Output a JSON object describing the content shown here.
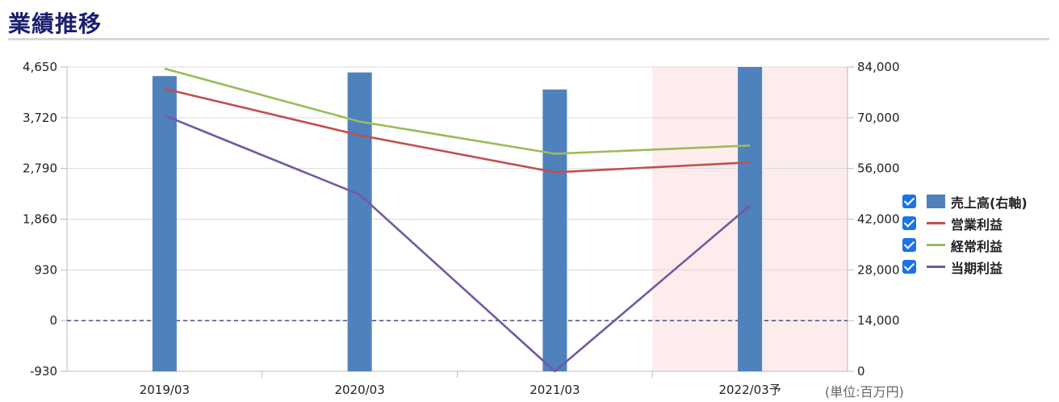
{
  "header": {
    "title": "業績推移"
  },
  "unit_label": "(単位:百万円)",
  "colors": {
    "bar": "#4f81bd",
    "operating": "#c0504d",
    "ordinary": "#9bbb59",
    "net": "#7459a2",
    "forecast_bg": "#fdecec"
  },
  "chart_data": {
    "type": "bar",
    "categories": [
      "2019/03",
      "2020/03",
      "2021/03",
      "2022/03予"
    ],
    "forecast_index": 3,
    "left_axis": {
      "ticks": [
        "4,650",
        "3,720",
        "2,790",
        "1,860",
        "930",
        "0",
        "-930"
      ],
      "range": [
        -930,
        4650
      ]
    },
    "right_axis": {
      "ticks": [
        "84,000",
        "70,000",
        "56,000",
        "42,000",
        "28,000",
        "14,000",
        "0"
      ],
      "range": [
        0,
        84000
      ]
    },
    "series": [
      {
        "name": "売上高(右軸)",
        "type": "bar",
        "axis": "right",
        "values": [
          81500,
          82500,
          77800,
          84000
        ]
      },
      {
        "name": "営業利益",
        "type": "line",
        "axis": "left",
        "values": [
          4250,
          3400,
          2720,
          2900
        ]
      },
      {
        "name": "経常利益",
        "type": "line",
        "axis": "left",
        "values": [
          4620,
          3650,
          3060,
          3210
        ]
      },
      {
        "name": "当期利益",
        "type": "line",
        "axis": "left",
        "values": [
          3760,
          2310,
          -930,
          2110
        ]
      }
    ],
    "grid": true,
    "legend": "right"
  }
}
